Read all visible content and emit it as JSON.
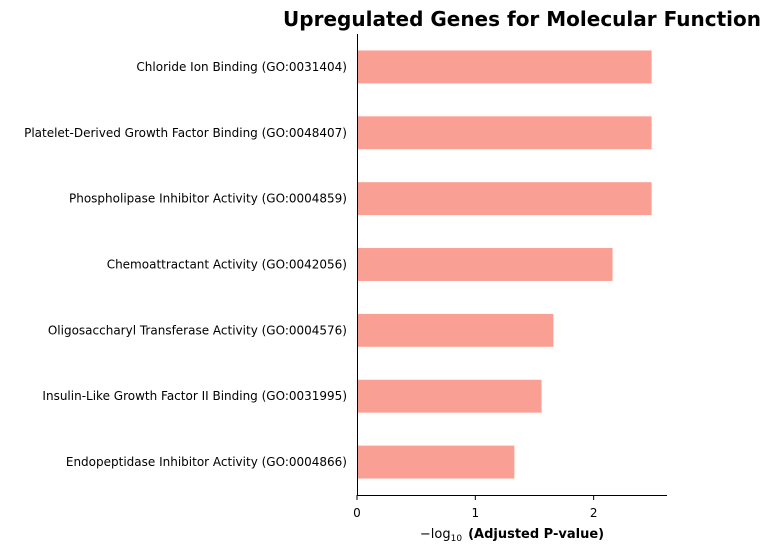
{
  "chart_data": {
    "type": "bar",
    "orientation": "horizontal",
    "title": "Upregulated Genes for Molecular Function",
    "xlabel_prefix": "−log",
    "xlabel_subscript": "10",
    "xlabel_main": "(Adjusted P-value)",
    "categories": [
      "Chloride Ion Binding (GO:0031404)",
      "Platelet-Derived Growth Factor Binding (GO:0048407)",
      "Phospholipase Inhibitor Activity (GO:0004859)",
      "Chemoattractant Activity (GO:0042056)",
      "Oligosaccharyl Transferase Activity (GO:0004576)",
      "Insulin-Like Growth Factor II Binding (GO:0031995)",
      "Endopeptidase Inhibitor Activity (GO:0004866)"
    ],
    "values": [
      2.49,
      2.49,
      2.49,
      2.16,
      1.66,
      1.56,
      1.33
    ],
    "xlim": [
      0,
      2.62
    ],
    "xticks": [
      0,
      1,
      2
    ],
    "bar_color": "#fa9f94",
    "grid": false,
    "legend": "none"
  }
}
